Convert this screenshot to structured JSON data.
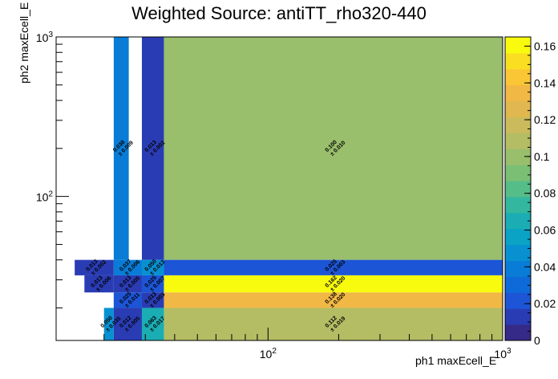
{
  "chart_data": {
    "type": "heatmap",
    "title": "Weighted Source: antiTT_rho320-440",
    "xlabel": "ph1 maxEcell_E",
    "ylabel": "ph2 maxEcell_E",
    "x_scale": "log",
    "y_scale": "log",
    "xlim": [
      12.5,
      1000
    ],
    "ylim": [
      12.5,
      1000
    ],
    "x_ticks": [
      {
        "value": 100,
        "label": "10^2"
      },
      {
        "value": 1000,
        "label": "10^3"
      }
    ],
    "y_ticks": [
      {
        "value": 100,
        "label": "10^2"
      },
      {
        "value": 1000,
        "label": "10^3"
      }
    ],
    "colorbar": {
      "range": [
        0,
        0.165
      ],
      "tick_labels": [
        "0",
        "0.02",
        "0.04",
        "0.06",
        "0.08",
        "0.1",
        "0.12",
        "0.14",
        "0.16"
      ],
      "palette": [
        "#352a87",
        "#2a3cb4",
        "#1c55d6",
        "#0f6ad9",
        "#087cd6",
        "#0891d1",
        "#0aa2c5",
        "#1aadb3",
        "#33b89f",
        "#55bd88",
        "#7abf74",
        "#99be6c",
        "#b4bd64",
        "#cbbb5d",
        "#e0b84f",
        "#f2b845",
        "#fbc636",
        "#f9de22",
        "#f9fb0e"
      ]
    },
    "cells": [
      {
        "x": [
          22,
          25.5
        ],
        "y": [
          40,
          1000
        ],
        "value": 0.038,
        "error": 0.009
      },
      {
        "x": [
          29,
          36
        ],
        "y": [
          40,
          1000
        ],
        "value": 0.013,
        "error": 0.002
      },
      {
        "x": [
          36,
          1000
        ],
        "y": [
          40,
          1000
        ],
        "value": 0.1,
        "error": 0.01
      },
      {
        "x": [
          15,
          22
        ],
        "y": [
          32,
          40
        ],
        "value": 0.013,
        "error": 0.002
      },
      {
        "x": [
          22,
          29
        ],
        "y": [
          32,
          40
        ],
        "value": 0.037,
        "error": 0.006
      },
      {
        "x": [
          29,
          36
        ],
        "y": [
          32,
          40
        ],
        "value": 0.05,
        "error": 0.013
      },
      {
        "x": [
          36,
          1000
        ],
        "y": [
          32,
          40
        ],
        "value": 0.025,
        "error": 0.003
      },
      {
        "x": [
          16.5,
          22
        ],
        "y": [
          25,
          32
        ],
        "value": 0.013,
        "error": 0.006
      },
      {
        "x": [
          22,
          29
        ],
        "y": [
          25,
          32
        ],
        "value": 0.013,
        "error": 0.005
      },
      {
        "x": [
          29,
          36
        ],
        "y": [
          25,
          32
        ],
        "value": 0.025,
        "error": 0.007
      },
      {
        "x": [
          36,
          1000
        ],
        "y": [
          25,
          32
        ],
        "value": 0.162,
        "error": 0.02
      },
      {
        "x": [
          22,
          29
        ],
        "y": [
          20,
          25
        ],
        "value": 0.025,
        "error": 0.011
      },
      {
        "x": [
          29,
          36
        ],
        "y": [
          20,
          25
        ],
        "value": 0.013,
        "error": 0.003
      },
      {
        "x": [
          36,
          1000
        ],
        "y": [
          20,
          25
        ],
        "value": 0.138,
        "error": 0.02
      },
      {
        "x": [
          20,
          22
        ],
        "y": [
          12.5,
          20
        ],
        "value": 0.05,
        "error": 0.035
      },
      {
        "x": [
          22,
          29
        ],
        "y": [
          12.5,
          20
        ],
        "value": 0.012,
        "error": 0.005
      },
      {
        "x": [
          29,
          36
        ],
        "y": [
          12.5,
          20
        ],
        "value": 0.063,
        "error": 0.017
      },
      {
        "x": [
          36,
          1000
        ],
        "y": [
          12.5,
          20
        ],
        "value": 0.112,
        "error": 0.019
      }
    ]
  }
}
